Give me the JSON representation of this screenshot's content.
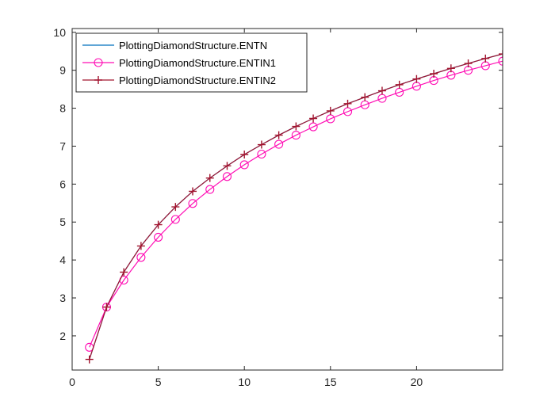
{
  "chart_data": {
    "type": "line",
    "title": "",
    "xlabel": "",
    "ylabel": "",
    "xlim": [
      0,
      25
    ],
    "ylim": [
      1.1,
      10.1
    ],
    "xticks": [
      0,
      5,
      10,
      15,
      20
    ],
    "yticks": [
      2,
      3,
      4,
      5,
      6,
      7,
      8,
      9,
      10
    ],
    "grid": false,
    "legend_position": "top-left",
    "x": [
      1,
      2,
      3,
      4,
      5,
      6,
      7,
      8,
      9,
      10,
      11,
      12,
      13,
      14,
      15,
      16,
      17,
      18,
      19,
      20,
      21,
      22,
      23,
      24,
      25
    ],
    "series": [
      {
        "name": "PlottingDiamondStructure.ENTN",
        "color": "#0072BD",
        "marker": "none",
        "values": [
          1.38,
          2.76,
          3.68,
          4.37,
          4.93,
          5.4,
          5.81,
          6.16,
          6.48,
          6.78,
          7.04,
          7.29,
          7.52,
          7.73,
          7.93,
          8.12,
          8.29,
          8.46,
          8.62,
          8.77,
          8.91,
          9.05,
          9.18,
          9.31,
          9.43
        ]
      },
      {
        "name": "PlottingDiamondStructure.ENTIN1",
        "color": "#FF0DB4",
        "marker": "circle",
        "values": [
          1.7,
          2.76,
          3.47,
          4.07,
          4.6,
          5.07,
          5.49,
          5.86,
          6.2,
          6.51,
          6.79,
          7.05,
          7.29,
          7.51,
          7.72,
          7.91,
          8.09,
          8.26,
          8.42,
          8.58,
          8.73,
          8.87,
          9.0,
          9.12,
          9.24
        ]
      },
      {
        "name": "PlottingDiamondStructure.ENTIN2",
        "color": "#A2142F",
        "marker": "plus",
        "values": [
          1.38,
          2.76,
          3.68,
          4.37,
          4.93,
          5.4,
          5.81,
          6.16,
          6.48,
          6.78,
          7.04,
          7.29,
          7.52,
          7.73,
          7.93,
          8.12,
          8.29,
          8.46,
          8.62,
          8.77,
          8.91,
          9.05,
          9.18,
          9.31,
          9.43
        ]
      }
    ]
  }
}
